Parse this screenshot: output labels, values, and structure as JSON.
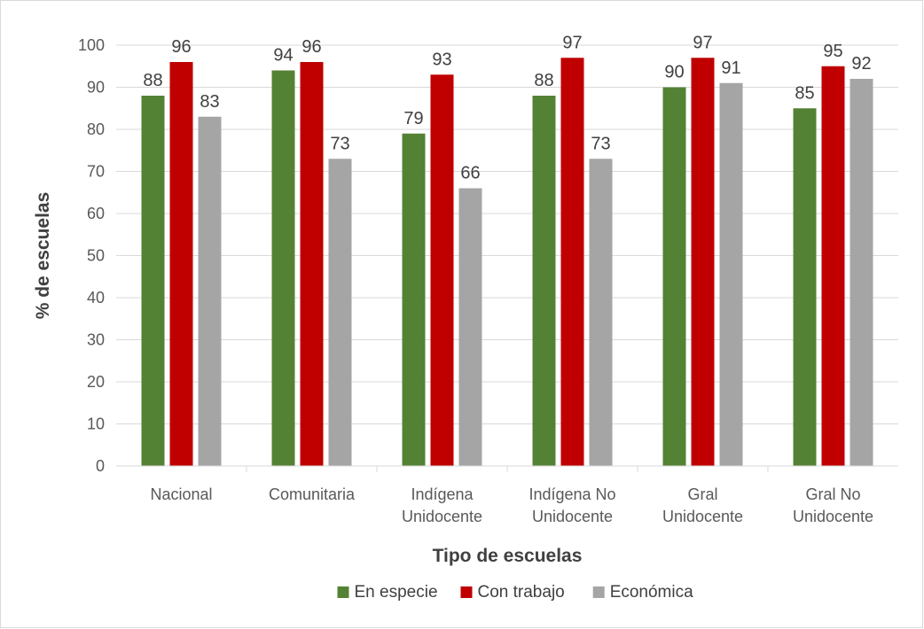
{
  "chart_data": {
    "type": "bar",
    "title": "",
    "xlabel": "Tipo de escuelas",
    "ylabel": "% de escuelas",
    "ylim": [
      0,
      100
    ],
    "yticks": [
      0,
      10,
      20,
      30,
      40,
      50,
      60,
      70,
      80,
      90,
      100
    ],
    "grid": true,
    "legend_position": "bottom",
    "categories": [
      [
        "Nacional"
      ],
      [
        "Comunitaria"
      ],
      [
        "Indígena",
        "Unidocente"
      ],
      [
        "Indígena No",
        "Unidocente"
      ],
      [
        "Gral",
        "Unidocente"
      ],
      [
        "Gral No",
        "Unidocente"
      ]
    ],
    "series": [
      {
        "name": "En especie",
        "color": "#548235",
        "values": [
          88,
          94,
          79,
          88,
          90,
          85
        ]
      },
      {
        "name": "Con trabajo",
        "color": "#C00000",
        "values": [
          96,
          96,
          93,
          97,
          97,
          95
        ]
      },
      {
        "name": "Económica",
        "color": "#A5A5A5",
        "values": [
          83,
          73,
          66,
          73,
          91,
          92
        ]
      }
    ]
  }
}
